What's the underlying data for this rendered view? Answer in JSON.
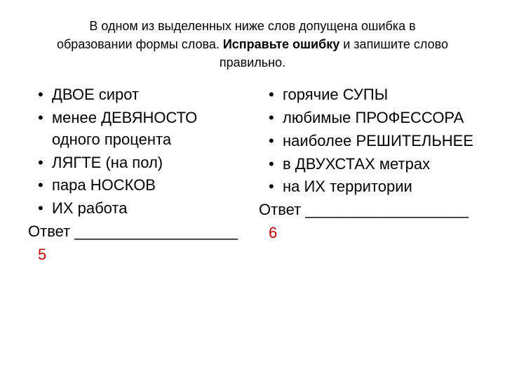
{
  "instruction": {
    "line1": "В одном из выделенных ниже слов допущена ошибка в",
    "line2a": "образовании формы слова. ",
    "line2b": "Исправьте ошибку",
    "line2c": " и запишите слово правильно."
  },
  "left": {
    "items": [
      "ДВОЕ сирот",
      "менее ДЕВЯНОСТО одного процента",
      "ЛЯГТЕ (на пол)",
      "пара НОСКОВ",
      "ИХ работа"
    ],
    "answer_label": "Ответ",
    "blank": "___________________",
    "task_number": "5"
  },
  "right": {
    "items": [
      "горячие СУПЫ",
      "любимые ПРОФЕССОРА",
      "наиболее РЕШИТЕЛЬНЕЕ",
      "в ДВУХСТАХ метрах",
      " на ИХ территории"
    ],
    "answer_label": "Ответ",
    "blank": "___________________",
    "task_number": "6"
  },
  "colors": {
    "task_number_color": "#c00000",
    "text_color": "#000000",
    "background": "#ffffff"
  },
  "typography": {
    "instruction_fontsize": 18,
    "body_fontsize": 22,
    "font_family": "Arial"
  }
}
